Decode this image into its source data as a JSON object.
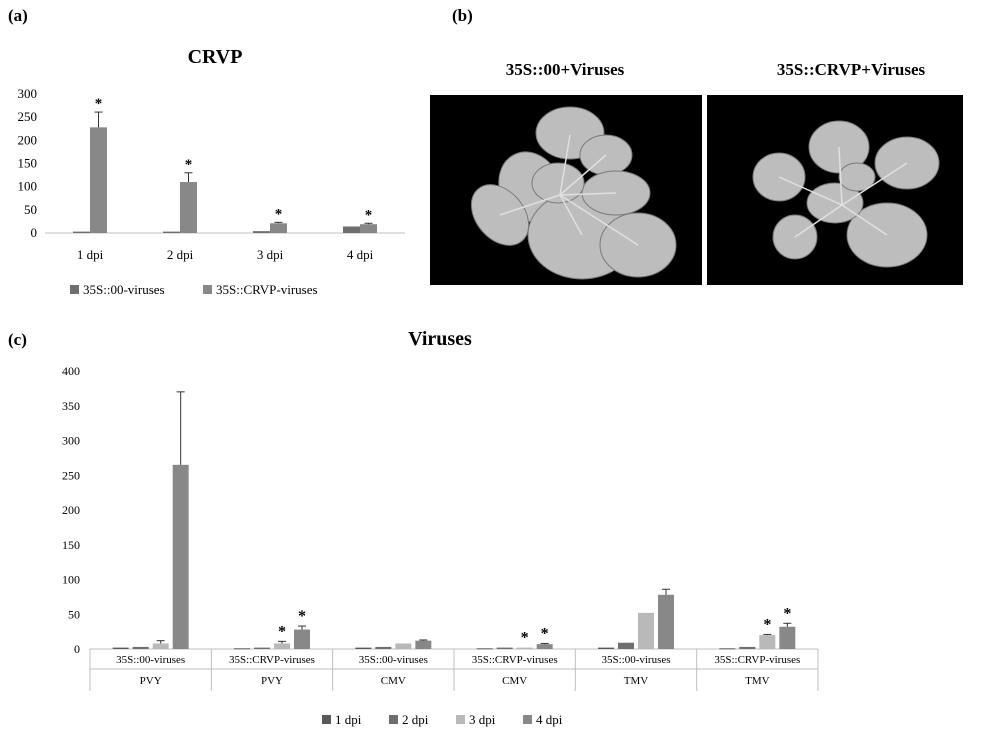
{
  "panels": {
    "a": {
      "label": "(a)",
      "title": "CRVP"
    },
    "b": {
      "label": "(b)",
      "left_title": "35S::00+Viruses",
      "right_title": "35S::CRVP+Viruses"
    },
    "c": {
      "label": "(c)",
      "title": "Viruses"
    }
  },
  "colors": {
    "dark": "#6e6e6e",
    "mid": "#888888",
    "light": "#b9b9b9",
    "darker": "#595959",
    "axis": "#bfbfbf",
    "error": "#333333"
  },
  "chart_data": [
    {
      "id": "chart-a",
      "type": "bar",
      "title": "CRVP",
      "categories": [
        "1 dpi",
        "2 dpi",
        "3 dpi",
        "4 dpi"
      ],
      "series": [
        {
          "name": "35S::00-viruses",
          "values": [
            3,
            3,
            4,
            14
          ],
          "errors": [
            0,
            0,
            0,
            0
          ]
        },
        {
          "name": "35S::CRVP-viruses",
          "values": [
            228,
            110,
            21,
            19
          ],
          "errors": [
            33,
            20,
            2,
            2
          ]
        }
      ],
      "significance": [
        [
          false,
          false,
          false,
          false
        ],
        [
          true,
          true,
          true,
          true
        ]
      ],
      "star": "*",
      "yticks": [
        "0",
        "50",
        "100",
        "150",
        "200",
        "250",
        "300"
      ],
      "ylim": [
        0,
        300
      ],
      "legend_position": "bottom"
    },
    {
      "id": "chart-c",
      "type": "bar",
      "title": "Viruses",
      "groups": [
        {
          "label": "35S::00-viruses",
          "sublabel": "PVY"
        },
        {
          "label": "35S::CRVP-viruses",
          "sublabel": "PVY"
        },
        {
          "label": "35S::00-viruses",
          "sublabel": "CMV"
        },
        {
          "label": "35S::CRVP-viruses",
          "sublabel": "CMV"
        },
        {
          "label": "35S::00-viruses",
          "sublabel": "TMV"
        },
        {
          "label": "35S::CRVP-viruses",
          "sublabel": "TMV"
        }
      ],
      "series": [
        {
          "name": "1 dpi",
          "values": [
            2,
            1,
            2,
            1,
            2,
            1
          ],
          "errors": [
            0,
            0,
            0,
            0,
            0,
            0
          ]
        },
        {
          "name": "2 dpi",
          "values": [
            3,
            2,
            3,
            2,
            9,
            3
          ],
          "errors": [
            0,
            0,
            0,
            0,
            0,
            0
          ]
        },
        {
          "name": "3 dpi",
          "values": [
            8,
            8,
            8,
            2,
            52,
            20
          ],
          "errors": [
            4,
            3,
            0,
            0,
            0,
            1
          ]
        },
        {
          "name": "4 dpi",
          "values": [
            265,
            28,
            12,
            7,
            78,
            32
          ],
          "errors": [
            105,
            5,
            1,
            1,
            8,
            5
          ]
        }
      ],
      "significance": [
        [
          false,
          false,
          false,
          false,
          false,
          false
        ],
        [
          false,
          false,
          false,
          false,
          false,
          false
        ],
        [
          false,
          true,
          false,
          true,
          false,
          true
        ],
        [
          false,
          true,
          false,
          true,
          false,
          true
        ]
      ],
      "star": "*",
      "yticks": [
        "0",
        "50",
        "100",
        "150",
        "200",
        "250",
        "300",
        "350",
        "400"
      ],
      "ylim": [
        0,
        400
      ],
      "legend_position": "bottom"
    }
  ]
}
